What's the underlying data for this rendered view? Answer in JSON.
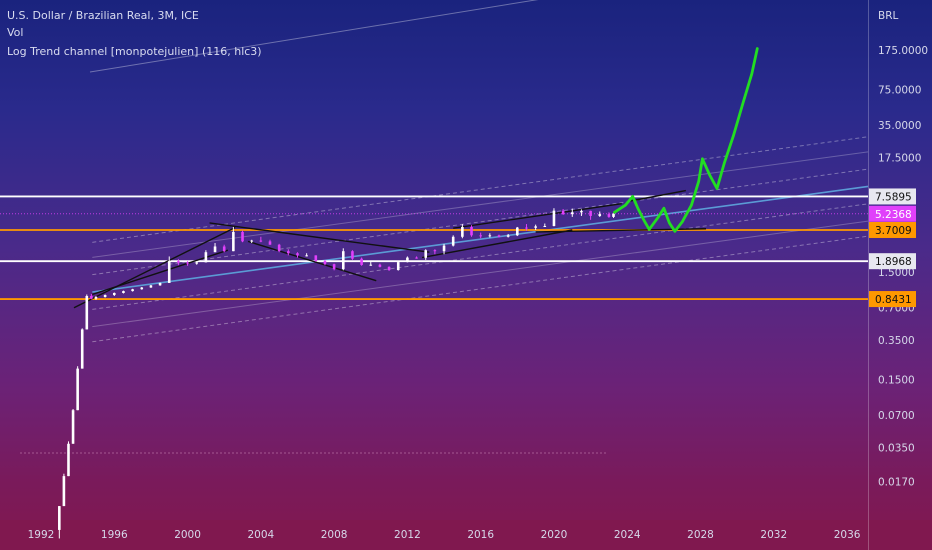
{
  "header": {
    "symbol": "U.S. Dollar / Brazilian Real, 3M, ICE",
    "volume_label": "Vol",
    "indicator": "Log Trend channel [monpotejulien] (116, hlc3)"
  },
  "chart_data": {
    "type": "candlestick",
    "currency_label": "BRL",
    "y_scale": "log",
    "x_ticks": [
      "1992",
      "1996",
      "2000",
      "2004",
      "2008",
      "2012",
      "2016",
      "2020",
      "2024",
      "2028",
      "2032",
      "2036"
    ],
    "y_ticks": [
      "175.0000",
      "75.0000",
      "35.0000",
      "17.5000",
      "1.5000",
      "0.7000",
      "0.3500",
      "0.1500",
      "0.0700",
      "0.0350",
      "0.0170"
    ],
    "price_levels": [
      {
        "value": 7.5895,
        "label": "7.5895",
        "color": "#ffffff"
      },
      {
        "value": 5.2368,
        "label": "5.2368",
        "color": "#e040fb"
      },
      {
        "value": 3.7009,
        "label": "3.7009",
        "color": "#ff9800"
      },
      {
        "value": 1.8968,
        "label": "1.8968",
        "color": "#ffffff"
      },
      {
        "value": 0.8431,
        "label": "0.8431",
        "color": "#ff9800"
      }
    ],
    "series": [
      {
        "values": [
          [
            1993.0,
            0.006,
            0.01,
            0.005,
            0.01
          ],
          [
            1993.25,
            0.01,
            0.02,
            0.01,
            0.019
          ],
          [
            1993.5,
            0.019,
            0.04,
            0.019,
            0.038
          ],
          [
            1993.75,
            0.038,
            0.08,
            0.038,
            0.078
          ],
          [
            1994.0,
            0.078,
            0.2,
            0.078,
            0.19
          ],
          [
            1994.25,
            0.19,
            0.45,
            0.19,
            0.44
          ],
          [
            1994.5,
            0.44,
            0.93,
            0.44,
            0.9
          ],
          [
            1994.75,
            0.9,
            0.94,
            0.84,
            0.85
          ],
          [
            1995.0,
            0.85,
            0.9,
            0.83,
            0.88
          ],
          [
            1995.5,
            0.88,
            0.93,
            0.87,
            0.92
          ],
          [
            1996.0,
            0.92,
            0.97,
            0.9,
            0.96
          ],
          [
            1996.5,
            0.96,
            1.01,
            0.95,
            1.0
          ],
          [
            1997.0,
            1.0,
            1.05,
            0.99,
            1.04
          ],
          [
            1997.5,
            1.04,
            1.09,
            1.03,
            1.08
          ],
          [
            1998.0,
            1.08,
            1.14,
            1.07,
            1.13
          ],
          [
            1998.5,
            1.13,
            1.2,
            1.12,
            1.19
          ],
          [
            1999.0,
            1.19,
            2.1,
            1.19,
            1.9
          ],
          [
            1999.5,
            1.9,
            1.98,
            1.74,
            1.84
          ],
          [
            2000.0,
            1.84,
            1.9,
            1.72,
            1.8
          ],
          [
            2000.5,
            1.8,
            1.9,
            1.76,
            1.85
          ],
          [
            2001.0,
            1.85,
            2.4,
            1.85,
            2.3
          ],
          [
            2001.5,
            2.3,
            2.8,
            2.3,
            2.6
          ],
          [
            2002.0,
            2.6,
            2.7,
            2.3,
            2.35
          ],
          [
            2002.5,
            2.35,
            3.95,
            2.35,
            3.55
          ],
          [
            2003.0,
            3.55,
            3.65,
            2.85,
            2.9
          ],
          [
            2003.5,
            2.9,
            3.0,
            2.8,
            2.95
          ],
          [
            2004.0,
            2.95,
            3.2,
            2.85,
            2.9
          ],
          [
            2004.5,
            2.9,
            3.0,
            2.7,
            2.7
          ],
          [
            2005.0,
            2.7,
            2.75,
            2.3,
            2.35
          ],
          [
            2005.5,
            2.35,
            2.45,
            2.15,
            2.25
          ],
          [
            2006.0,
            2.25,
            2.3,
            2.05,
            2.15
          ],
          [
            2006.5,
            2.15,
            2.25,
            2.1,
            2.15
          ],
          [
            2007.0,
            2.15,
            2.15,
            1.88,
            1.9
          ],
          [
            2007.5,
            1.9,
            1.95,
            1.74,
            1.78
          ],
          [
            2008.0,
            1.78,
            1.8,
            1.56,
            1.6
          ],
          [
            2008.5,
            1.6,
            2.5,
            1.56,
            2.35
          ],
          [
            2009.0,
            2.35,
            2.4,
            1.95,
            2.0
          ],
          [
            2009.5,
            2.0,
            2.05,
            1.72,
            1.75
          ],
          [
            2010.0,
            1.75,
            1.88,
            1.72,
            1.76
          ],
          [
            2010.5,
            1.76,
            1.8,
            1.66,
            1.68
          ],
          [
            2011.0,
            1.68,
            1.7,
            1.54,
            1.57
          ],
          [
            2011.5,
            1.57,
            1.9,
            1.55,
            1.86
          ],
          [
            2012.0,
            1.86,
            2.1,
            1.85,
            2.05
          ],
          [
            2012.5,
            2.05,
            2.1,
            2.0,
            2.04
          ],
          [
            2013.0,
            2.04,
            2.45,
            1.95,
            2.4
          ],
          [
            2013.5,
            2.4,
            2.45,
            2.2,
            2.35
          ],
          [
            2014.0,
            2.35,
            2.75,
            2.2,
            2.65
          ],
          [
            2014.5,
            2.65,
            3.3,
            2.6,
            3.2
          ],
          [
            2015.0,
            3.2,
            4.2,
            3.1,
            3.95
          ],
          [
            2015.5,
            3.95,
            4.1,
            3.2,
            3.3
          ],
          [
            2016.0,
            3.3,
            3.5,
            3.1,
            3.25
          ],
          [
            2016.5,
            3.25,
            3.45,
            3.15,
            3.3
          ],
          [
            2017.0,
            3.3,
            3.35,
            3.15,
            3.2
          ],
          [
            2017.5,
            3.2,
            3.4,
            3.15,
            3.3
          ],
          [
            2018.0,
            3.3,
            3.95,
            3.25,
            3.9
          ],
          [
            2018.5,
            3.9,
            4.2,
            3.65,
            3.88
          ],
          [
            2019.0,
            3.88,
            4.15,
            3.7,
            4.0
          ],
          [
            2019.5,
            4.0,
            4.25,
            3.95,
            4.03
          ],
          [
            2020.0,
            4.03,
            5.9,
            4.0,
            5.6
          ],
          [
            2020.5,
            5.6,
            5.8,
            5.1,
            5.2
          ],
          [
            2021.0,
            5.2,
            5.85,
            4.9,
            5.4
          ],
          [
            2021.5,
            5.4,
            5.75,
            5.0,
            5.57
          ],
          [
            2022.0,
            5.57,
            5.6,
            4.6,
            5.0
          ],
          [
            2022.5,
            5.0,
            5.5,
            4.9,
            5.2
          ],
          [
            2023.0,
            5.2,
            5.4,
            4.8,
            4.9
          ],
          [
            2023.25,
            4.9,
            5.3,
            4.8,
            5.236
          ]
        ]
      }
    ]
  },
  "colors": {
    "up_candle": "#ffffff",
    "down_candle": "#e040fb",
    "trend_mid": "#5b9bd5",
    "projection": "#22dd22",
    "level_white": "#ffffff",
    "level_orange": "#ff9800"
  }
}
